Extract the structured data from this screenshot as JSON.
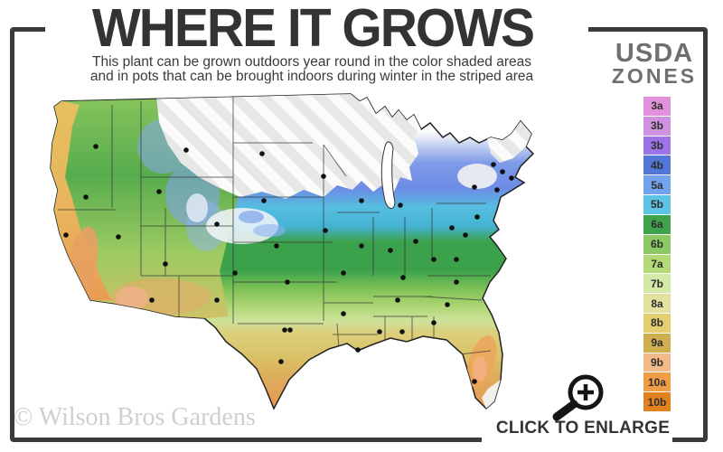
{
  "header": {
    "title": "WHERE IT GROWS",
    "subtitle_line1": "This plant can be grown outdoors year round in the color shaded areas",
    "subtitle_line2": "and in pots that can be brought indoors during winter in the striped area"
  },
  "legend": {
    "title_line1": "USDA",
    "title_line2": "ZONES",
    "zones": [
      {
        "label": "3a",
        "color": "#e292dc"
      },
      {
        "label": "3b",
        "color": "#d092e0"
      },
      {
        "label": "3b",
        "color": "#9d74e8"
      },
      {
        "label": "4b",
        "color": "#5277d8"
      },
      {
        "label": "5a",
        "color": "#74a3ee"
      },
      {
        "label": "5b",
        "color": "#5ec4e4"
      },
      {
        "label": "6a",
        "color": "#3fa34c"
      },
      {
        "label": "6b",
        "color": "#8cc863"
      },
      {
        "label": "7a",
        "color": "#b4d977"
      },
      {
        "label": "7b",
        "color": "#d4e8a8"
      },
      {
        "label": "8a",
        "color": "#e4e0a0"
      },
      {
        "label": "8b",
        "color": "#e3cf70"
      },
      {
        "label": "9a",
        "color": "#cfae4f"
      },
      {
        "label": "9b",
        "color": "#f2b98a"
      },
      {
        "label": "10a",
        "color": "#ef9e47"
      },
      {
        "label": "10b",
        "color": "#e2811f"
      }
    ]
  },
  "footer": {
    "watermark": "© Wilson Bros Gardens",
    "cta_label": "CLICK TO ENLARGE"
  },
  "colors": {
    "frame": "#3a3a3a",
    "title_text": "#333333",
    "legend_title_text": "#6f6f6f",
    "watermark_text": "#cfcfcf"
  }
}
